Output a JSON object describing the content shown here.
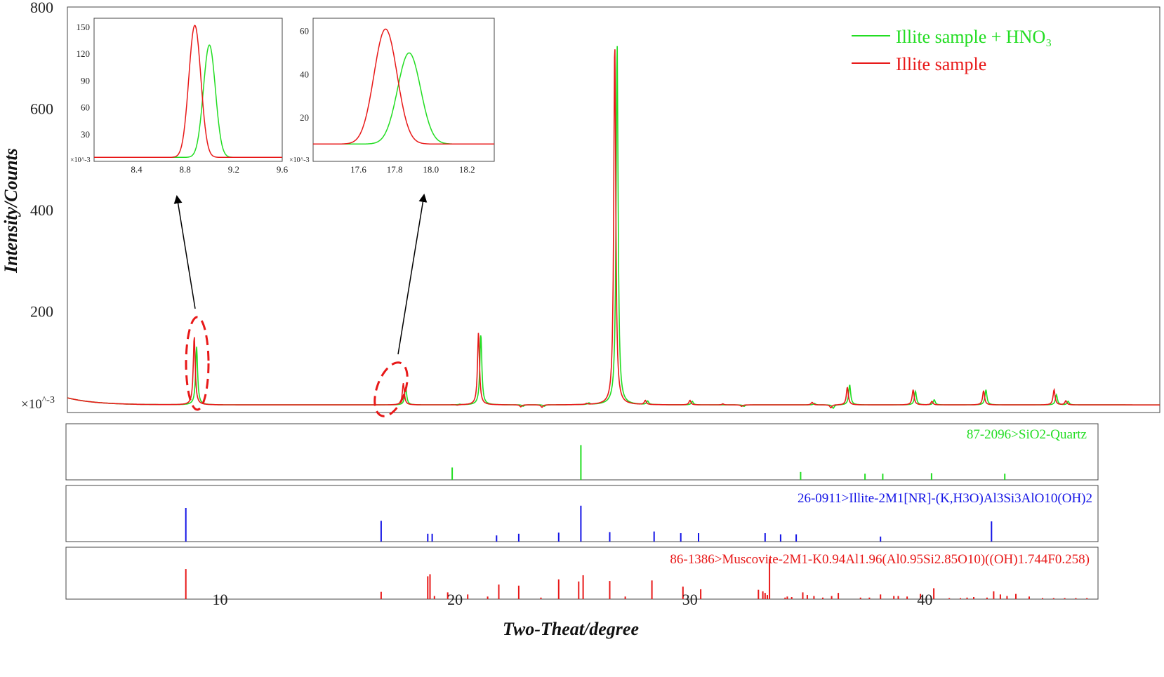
{
  "chart_data": {
    "type": "line",
    "xlabel": "Two-Theat/degree",
    "ylabel": "Intensity/Counts",
    "y_unit": "×10^-3",
    "xlim": [
      3.5,
      50
    ],
    "ylim": [
      0,
      800
    ],
    "x_ticks": [
      10,
      20,
      30,
      40
    ],
    "y_ticks": [
      200,
      400,
      600,
      800
    ],
    "grid": false,
    "legend_position": "top-right",
    "colors": {
      "green": "#22dd22",
      "red": "#e81818",
      "blue": "#1414e6"
    },
    "series": [
      {
        "name": "Illite sample + HNO₃",
        "color": "#22dd22",
        "baseline": 15,
        "peaks": [
          {
            "x": 9.0,
            "y": 130
          },
          {
            "x": 17.9,
            "y": 50
          },
          {
            "x": 20.2,
            "y": 16
          },
          {
            "x": 21.1,
            "y": 155
          },
          {
            "x": 22.9,
            "y": 12
          },
          {
            "x": 23.8,
            "y": 12
          },
          {
            "x": 25.7,
            "y": 18
          },
          {
            "x": 26.9,
            "y": 730
          },
          {
            "x": 28.2,
            "y": 22
          },
          {
            "x": 30.1,
            "y": 22
          },
          {
            "x": 31.5,
            "y": 15
          },
          {
            "x": 32.3,
            "y": 12
          },
          {
            "x": 35.3,
            "y": 18
          },
          {
            "x": 36.1,
            "y": 8
          },
          {
            "x": 36.8,
            "y": 55
          },
          {
            "x": 39.6,
            "y": 42
          },
          {
            "x": 40.4,
            "y": 25
          },
          {
            "x": 42.6,
            "y": 45
          },
          {
            "x": 45.6,
            "y": 35
          },
          {
            "x": 46.1,
            "y": 22
          }
        ]
      },
      {
        "name": "Illite sample",
        "color": "#e81818",
        "baseline": 15,
        "peaks": [
          {
            "x": 8.9,
            "y": 150
          },
          {
            "x": 17.8,
            "y": 58
          },
          {
            "x": 20.1,
            "y": 14
          },
          {
            "x": 21.0,
            "y": 158
          },
          {
            "x": 22.8,
            "y": 11
          },
          {
            "x": 23.7,
            "y": 10
          },
          {
            "x": 25.6,
            "y": 17
          },
          {
            "x": 26.8,
            "y": 735
          },
          {
            "x": 28.1,
            "y": 23
          },
          {
            "x": 30.0,
            "y": 24
          },
          {
            "x": 31.4,
            "y": 17
          },
          {
            "x": 32.2,
            "y": 12
          },
          {
            "x": 35.2,
            "y": 20
          },
          {
            "x": 36.0,
            "y": 9
          },
          {
            "x": 36.7,
            "y": 50
          },
          {
            "x": 39.5,
            "y": 45
          },
          {
            "x": 40.3,
            "y": 22
          },
          {
            "x": 42.5,
            "y": 43
          },
          {
            "x": 45.5,
            "y": 45
          },
          {
            "x": 46.0,
            "y": 23
          }
        ]
      }
    ],
    "insets": [
      {
        "xlim": [
          8.05,
          9.6
        ],
        "ylim": [
          0,
          160
        ],
        "x_ticks": [
          8.4,
          8.8,
          9.2,
          9.6
        ],
        "y_ticks": [
          30,
          60,
          90,
          120,
          150
        ],
        "y_unit": "×10^-3",
        "peaks": {
          "green": {
            "x": 9.0,
            "y": 130
          },
          "red": {
            "x": 8.88,
            "y": 152
          }
        }
      },
      {
        "xlim": [
          17.35,
          18.35
        ],
        "ylim": [
          0,
          66
        ],
        "x_ticks": [
          17.6,
          17.8,
          18.0,
          18.2
        ],
        "y_ticks": [
          20,
          40,
          60
        ],
        "y_unit": "×10^-3",
        "peaks": {
          "green": {
            "x": 17.88,
            "y": 50
          },
          "red": {
            "x": 17.75,
            "y": 61
          }
        }
      }
    ],
    "reference_patterns": [
      {
        "label": "87-2096>SiO2-Quartz",
        "color": "#22dd22",
        "lines": [
          [
            20.9,
            22
          ],
          [
            26.7,
            62
          ],
          [
            36.6,
            14
          ],
          [
            39.5,
            11
          ],
          [
            40.3,
            11
          ],
          [
            42.5,
            12
          ],
          [
            45.8,
            11
          ]
        ]
      },
      {
        "label": "26-0911>Illite-2M1[NR]-(K,H3O)Al3Si3AlO10(OH)2",
        "color": "#1414e6",
        "lines": [
          [
            8.9,
            60
          ],
          [
            17.7,
            37
          ],
          [
            19.8,
            14
          ],
          [
            20.0,
            14
          ],
          [
            22.9,
            11
          ],
          [
            23.9,
            14
          ],
          [
            25.7,
            16
          ],
          [
            26.7,
            64
          ],
          [
            28.0,
            17
          ],
          [
            30.0,
            18
          ],
          [
            31.2,
            15
          ],
          [
            32.0,
            15
          ],
          [
            35.0,
            15
          ],
          [
            35.7,
            13
          ],
          [
            36.4,
            13
          ],
          [
            40.2,
            9
          ],
          [
            45.2,
            36
          ]
        ]
      },
      {
        "label": "86-1386>Muscovite-2M1-K0.94Al1.96(Al0.95Si2.85O10)((OH)1.744F0.258)",
        "color": "#e81818",
        "lines": [
          [
            8.9,
            58
          ],
          [
            17.7,
            14
          ],
          [
            19.8,
            44
          ],
          [
            19.9,
            48
          ],
          [
            20.1,
            6
          ],
          [
            20.7,
            13
          ],
          [
            21.6,
            9
          ],
          [
            22.5,
            5
          ],
          [
            23.0,
            28
          ],
          [
            23.9,
            26
          ],
          [
            24.9,
            3
          ],
          [
            25.7,
            38
          ],
          [
            26.6,
            34
          ],
          [
            26.8,
            46
          ],
          [
            28.0,
            35
          ],
          [
            28.7,
            5
          ],
          [
            29.9,
            36
          ],
          [
            31.3,
            24
          ],
          [
            32.1,
            19
          ],
          [
            34.7,
            18
          ],
          [
            34.9,
            15
          ],
          [
            35.0,
            12
          ],
          [
            35.1,
            8
          ],
          [
            35.2,
            78
          ],
          [
            35.9,
            3
          ],
          [
            36.0,
            5
          ],
          [
            36.2,
            4
          ],
          [
            36.7,
            13
          ],
          [
            36.9,
            8
          ],
          [
            37.2,
            6
          ],
          [
            37.6,
            3
          ],
          [
            38.0,
            6
          ],
          [
            38.3,
            12
          ],
          [
            39.3,
            3
          ],
          [
            39.7,
            3
          ],
          [
            40.2,
            9
          ],
          [
            40.8,
            6
          ],
          [
            41.0,
            6
          ],
          [
            41.4,
            5
          ],
          [
            42.0,
            10
          ],
          [
            42.6,
            21
          ],
          [
            43.3,
            2
          ],
          [
            43.8,
            2
          ],
          [
            44.1,
            3
          ],
          [
            44.4,
            4
          ],
          [
            45.0,
            3
          ],
          [
            45.3,
            15
          ],
          [
            45.6,
            9
          ],
          [
            45.9,
            6
          ],
          [
            46.3,
            10
          ],
          [
            46.9,
            5
          ],
          [
            47.5,
            2
          ],
          [
            48.0,
            2
          ],
          [
            48.5,
            2
          ],
          [
            49.0,
            2
          ],
          [
            49.5,
            2
          ]
        ]
      }
    ]
  }
}
